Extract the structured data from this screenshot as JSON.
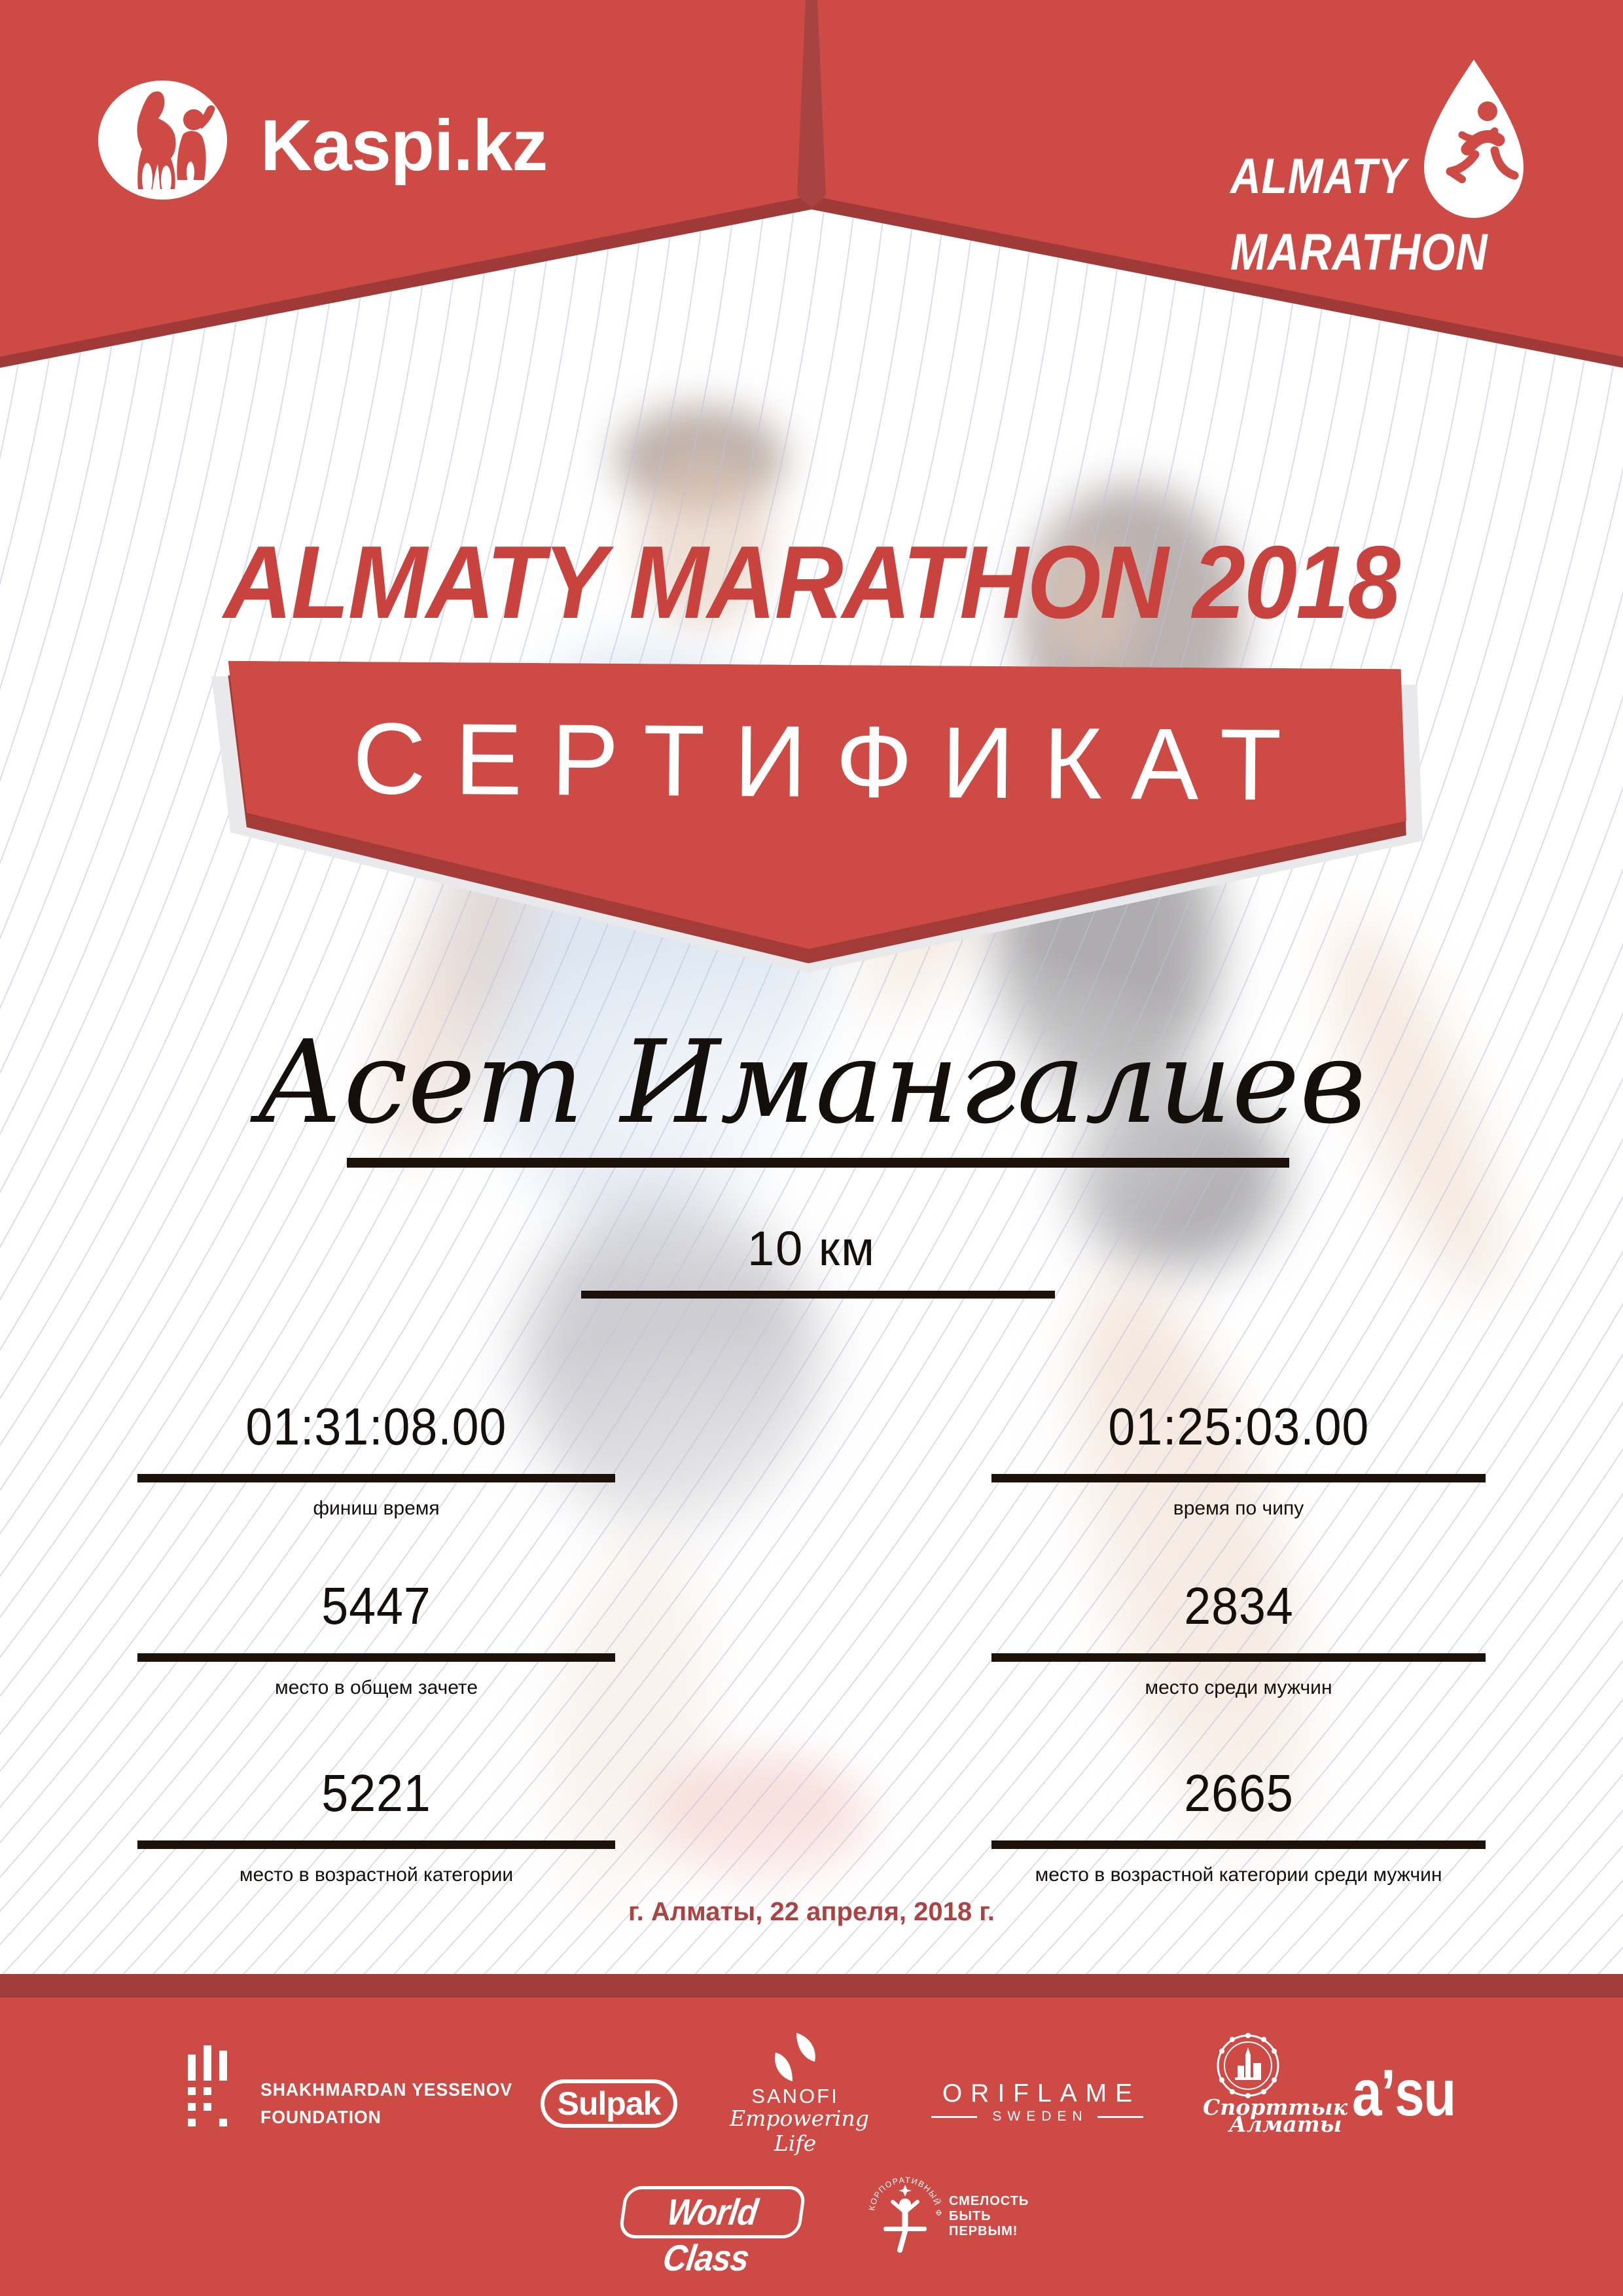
{
  "colors": {
    "banner_red": "#cd4a45",
    "fold_dark_red": "#a03a38",
    "seam_red": "#a84341",
    "title_red": "#c9433e",
    "date_red": "#aa4341",
    "ink": "#1c1209",
    "pinstripe": "#b9c3de",
    "ribbon_shadow_gray": "#e9e8ea",
    "logo_white": "#ffffff"
  },
  "header": {
    "kaspi_logo_text": "Kaspi.kz",
    "marathon_logo_line1": "ALMATY",
    "marathon_logo_line2": "MARATHON"
  },
  "title": "ALMATY MARATHON 2018",
  "certificate_label": "СЕРТИФИКАТ",
  "recipient": {
    "name": "Асет Имангалиев",
    "distance": "10 км"
  },
  "stats": [
    {
      "value": "01:31:08.00",
      "label": "финиш время"
    },
    {
      "value": "01:25:03.00",
      "label": "время по чипу"
    },
    {
      "value": "5447",
      "label": "место в общем зачете"
    },
    {
      "value": "2834",
      "label": "место среди мужчин"
    },
    {
      "value": "5221",
      "label": "место в возрастной категории"
    },
    {
      "value": "2665",
      "label": "место в возрастной категории среди мужчин"
    }
  ],
  "date_line": "г. Алматы, 22 апреля, 2018 г.",
  "sponsors": {
    "yessenov": {
      "line1": "SHAKHMARDAN YESSENOV",
      "line2": "FOUNDATION"
    },
    "sulpak": {
      "label": "Sulpak"
    },
    "sanofi": {
      "name": "SANOFI",
      "tagline": "Empowering Life"
    },
    "oriflame": {
      "name": "ORIFLAME",
      "country": "SWEDEN"
    },
    "sport_almaty": {
      "line1": "Спорттык",
      "line2": "Алматы"
    },
    "asu": {
      "label": "aʼsu"
    },
    "world_class": {
      "label": "World Class"
    },
    "courage_fund": {
      "arc_text": "КОРПОРАТИВНЫЙ ФОНД",
      "line1": "СМЕЛОСТЬ",
      "line2": "БЫТЬ",
      "line3": "ПЕРВЫМ!"
    }
  }
}
